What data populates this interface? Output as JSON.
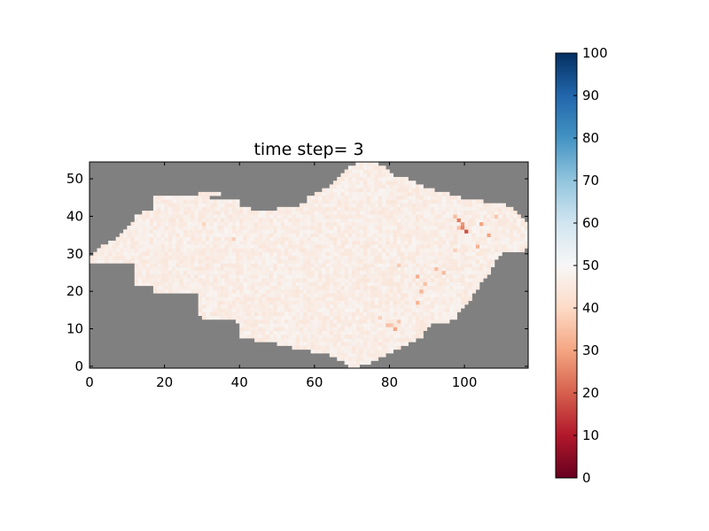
{
  "chart_data": {
    "type": "heatmap",
    "title": "time step= 3",
    "xlabel": "",
    "ylabel": "",
    "xlim": [
      0,
      117
    ],
    "ylim": [
      0,
      55
    ],
    "xticks": [
      "0",
      "20",
      "40",
      "60",
      "80",
      "100"
    ],
    "yticks": [
      "0",
      "10",
      "20",
      "30",
      "40",
      "50"
    ],
    "background_color": "#808080",
    "colormap": "RdBu",
    "colorbar": {
      "vmin": 0,
      "vmax": 100,
      "ticks": [
        "0",
        "10",
        "20",
        "30",
        "40",
        "50",
        "60",
        "70",
        "80",
        "90",
        "100"
      ]
    },
    "grid": false,
    "domain_row_extents": [
      [
        0,
        69,
        71
      ],
      [
        1,
        68,
        74
      ],
      [
        2,
        66,
        76
      ],
      [
        3,
        64,
        78
      ],
      [
        4,
        59,
        80
      ],
      [
        5,
        54,
        82
      ],
      [
        6,
        50,
        84
      ],
      [
        7,
        44,
        86
      ],
      [
        8,
        40,
        88
      ],
      [
        9,
        40,
        88
      ],
      [
        10,
        40,
        89
      ],
      [
        11,
        40,
        90
      ],
      [
        12,
        39,
        95
      ],
      [
        13,
        30,
        97
      ],
      [
        14,
        29,
        97
      ],
      [
        15,
        29,
        98
      ],
      [
        16,
        29,
        99
      ],
      [
        17,
        29,
        100
      ],
      [
        18,
        29,
        101
      ],
      [
        19,
        29,
        101
      ],
      [
        20,
        17,
        102
      ],
      [
        21,
        17,
        103
      ],
      [
        22,
        12,
        103
      ],
      [
        23,
        12,
        104
      ],
      [
        24,
        12,
        105
      ],
      [
        25,
        12,
        106
      ],
      [
        26,
        12,
        106
      ],
      [
        27,
        12,
        107
      ],
      [
        28,
        0,
        107
      ],
      [
        29,
        0,
        108
      ],
      [
        30,
        1,
        109
      ],
      [
        31,
        2,
        115
      ],
      [
        32,
        3,
        116
      ],
      [
        33,
        5,
        116
      ],
      [
        34,
        7,
        116
      ],
      [
        35,
        8,
        116
      ],
      [
        36,
        9,
        116
      ],
      [
        37,
        10,
        116
      ],
      [
        38,
        11,
        116
      ],
      [
        39,
        12,
        115
      ],
      [
        40,
        12,
        114
      ],
      [
        41,
        14,
        113
      ],
      [
        42,
        17,
        42
      ],
      [
        42,
        50,
        112
      ],
      [
        43,
        17,
        39
      ],
      [
        43,
        56,
        110
      ],
      [
        44,
        17,
        39
      ],
      [
        44,
        58,
        104
      ],
      [
        45,
        17,
        31
      ],
      [
        45,
        58,
        98
      ],
      [
        46,
        29,
        34
      ],
      [
        46,
        60,
        95
      ],
      [
        47,
        62,
        91
      ],
      [
        48,
        64,
        88
      ],
      [
        49,
        65,
        86
      ],
      [
        50,
        66,
        84
      ],
      [
        51,
        67,
        80
      ],
      [
        52,
        68,
        79
      ],
      [
        53,
        69,
        78
      ],
      [
        54,
        71,
        76
      ]
    ],
    "base_value_range": [
      44,
      49
    ],
    "hotspots": [
      [
        98,
        39,
        24
      ],
      [
        100,
        36,
        18
      ],
      [
        99,
        38,
        28
      ],
      [
        104,
        38,
        30
      ],
      [
        103,
        32,
        32
      ],
      [
        97,
        40,
        34
      ],
      [
        108,
        40,
        36
      ],
      [
        106,
        35,
        30
      ],
      [
        92,
        26,
        34
      ],
      [
        94,
        25,
        34
      ],
      [
        87,
        24,
        32
      ],
      [
        88,
        20,
        33
      ],
      [
        87,
        17,
        33
      ],
      [
        89,
        22,
        35
      ],
      [
        80,
        11,
        36
      ],
      [
        81,
        10,
        30
      ],
      [
        79,
        11,
        35
      ],
      [
        82,
        12,
        36
      ],
      [
        77,
        13,
        38
      ],
      [
        38,
        34,
        38
      ],
      [
        30,
        38,
        39
      ],
      [
        82,
        27,
        37
      ],
      [
        99,
        37,
        25
      ],
      [
        98,
        37,
        35
      ],
      [
        97,
        31,
        38
      ]
    ]
  }
}
